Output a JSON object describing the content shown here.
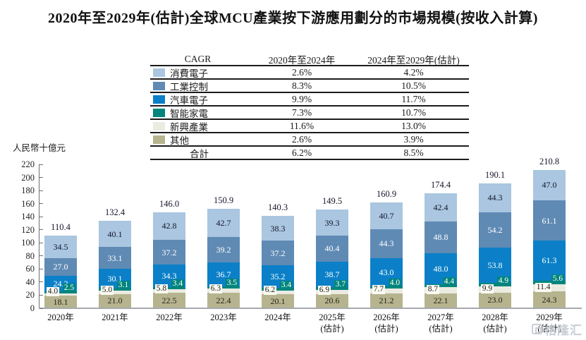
{
  "title": "2020年至2029年(估計)全球MCU產業按下游應用劃分的市場規模(按收入計算)",
  "watermark": "格隆汇",
  "cagr_table": {
    "headers": [
      "CAGR",
      "2020年至2024年",
      "2024年至2029年(估計)"
    ],
    "rows": [
      {
        "label": "消費電子",
        "color": "#aac6e0",
        "cagr_2020_2024": "2.6%",
        "cagr_2024_2029": "4.2%"
      },
      {
        "label": "工業控制",
        "color": "#5f8ab4",
        "cagr_2020_2024": "8.3%",
        "cagr_2024_2029": "10.5%"
      },
      {
        "label": "汽車電子",
        "color": "#0b80c8",
        "cagr_2020_2024": "9.9%",
        "cagr_2024_2029": "11.7%"
      },
      {
        "label": "智能家電",
        "color": "#00857d",
        "cagr_2020_2024": "7.3%",
        "cagr_2024_2029": "10.7%"
      },
      {
        "label": "新興產業",
        "color": "#ebebe1",
        "cagr_2020_2024": "11.6%",
        "cagr_2024_2029": "13.0%"
      },
      {
        "label": "其他",
        "color": "#b5b48f",
        "cagr_2020_2024": "2.6%",
        "cagr_2024_2029": "3.9%"
      }
    ],
    "total_row": {
      "label": "合計",
      "cagr_2020_2024": "6.2%",
      "cagr_2024_2029": "8.5%"
    }
  },
  "chart_data": {
    "type": "bar",
    "subtype": "stacked",
    "title": "2020年至2029年(估計)全球MCU產業按下游應用劃分的市場規模(按收入計算)",
    "unit_label": "人民幣十億元",
    "ylim": [
      0,
      220
    ],
    "ytick_step": 20,
    "grid": false,
    "legend_position": "table-top",
    "categories": [
      "2020年",
      "2021年",
      "2022年",
      "2023年",
      "2024年",
      "2025年\n(估計)",
      "2026年\n(估計)",
      "2027年\n(估計)",
      "2028年\n(估計)",
      "2029年\n(估計)"
    ],
    "totals": [
      110.4,
      132.4,
      146.0,
      150.9,
      140.3,
      149.5,
      160.9,
      174.4,
      190.1,
      210.8
    ],
    "series": [
      {
        "name": "其他",
        "color": "#b5b48f",
        "text_color": "#26261a",
        "values": [
          18.1,
          21.0,
          22.5,
          22.4,
          20.1,
          20.6,
          21.2,
          22.1,
          23.0,
          24.3
        ]
      },
      {
        "name": "新興產業",
        "color": "#ebebe1",
        "text_color": "#1a1a1a",
        "values": [
          4.0,
          5.0,
          5.8,
          6.3,
          6.2,
          6.9,
          7.7,
          8.7,
          9.9,
          11.4
        ]
      },
      {
        "name": "智能家電",
        "color": "#00857d",
        "text_color": "#ffffff",
        "values": [
          2.5,
          3.1,
          3.4,
          3.5,
          3.4,
          3.7,
          4.0,
          4.4,
          4.9,
          5.6
        ]
      },
      {
        "name": "汽車電子",
        "color": "#0b80c8",
        "text_color": "#ffffff",
        "values": [
          24.2,
          30.1,
          34.3,
          36.7,
          35.2,
          38.7,
          43.0,
          48.0,
          53.8,
          61.3
        ]
      },
      {
        "name": "工業控制",
        "color": "#5f8ab4",
        "text_color": "#ffffff",
        "values": [
          27.0,
          33.1,
          37.2,
          39.2,
          37.2,
          40.4,
          44.3,
          48.8,
          54.2,
          61.1
        ]
      },
      {
        "name": "消費電子",
        "color": "#aac6e0",
        "text_color": "#15152b",
        "values": [
          34.5,
          40.1,
          42.8,
          42.7,
          38.3,
          39.3,
          40.7,
          42.4,
          44.3,
          47.0
        ]
      }
    ]
  }
}
